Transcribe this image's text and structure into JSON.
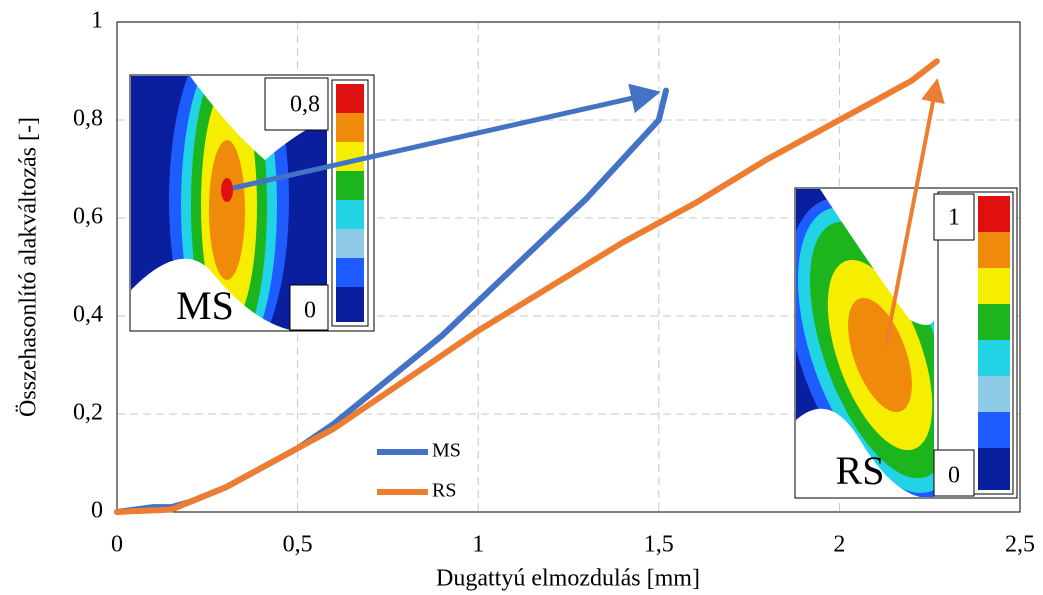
{
  "chart_data": {
    "type": "line",
    "x_label": "Dugattyú elmozdulás [mm]",
    "y_label": "Összehasonlító alakváltozás [-]",
    "xlim": [
      0,
      2.5
    ],
    "xticks": [
      0,
      {
        "value": 0.5,
        "label": "0,5"
      },
      1,
      {
        "value": 1.5,
        "label": "1,5"
      },
      2,
      {
        "value": 2.5,
        "label": "2,5"
      }
    ],
    "ylim": [
      0,
      1
    ],
    "yticks": [
      0,
      {
        "value": 0.2,
        "label": "0,2"
      },
      {
        "value": 0.4,
        "label": "0,4"
      },
      {
        "value": 0.6,
        "label": "0,6"
      },
      {
        "value": 0.8,
        "label": "0,8"
      },
      1
    ],
    "grid": true,
    "series": [
      {
        "name": "MS",
        "color": "#4472c4",
        "x": [
          0,
          0.1,
          0.15,
          0.2,
          0.3,
          0.4,
          0.5,
          0.6,
          0.7,
          0.8,
          0.9,
          1.0,
          1.1,
          1.2,
          1.3,
          1.4,
          1.45,
          1.5,
          1.51,
          1.52
        ],
        "values": [
          0,
          0.01,
          0.01,
          0.02,
          0.05,
          0.09,
          0.13,
          0.18,
          0.24,
          0.3,
          0.36,
          0.43,
          0.5,
          0.57,
          0.64,
          0.72,
          0.76,
          0.8,
          0.83,
          0.86
        ]
      },
      {
        "name": "RS",
        "color": "#ed7d31",
        "x": [
          0,
          0.15,
          0.2,
          0.3,
          0.4,
          0.5,
          0.6,
          0.7,
          0.8,
          0.9,
          1.0,
          1.2,
          1.4,
          1.6,
          1.8,
          2.0,
          2.2,
          2.27
        ],
        "values": [
          0,
          0.005,
          0.02,
          0.05,
          0.09,
          0.13,
          0.17,
          0.22,
          0.27,
          0.32,
          0.37,
          0.46,
          0.55,
          0.63,
          0.72,
          0.8,
          0.88,
          0.92
        ]
      }
    ],
    "insets": [
      {
        "label": "MS",
        "max_label": "0,8",
        "min_label": "0"
      },
      {
        "label": "RS",
        "max_label": "1",
        "min_label": "0"
      }
    ]
  }
}
